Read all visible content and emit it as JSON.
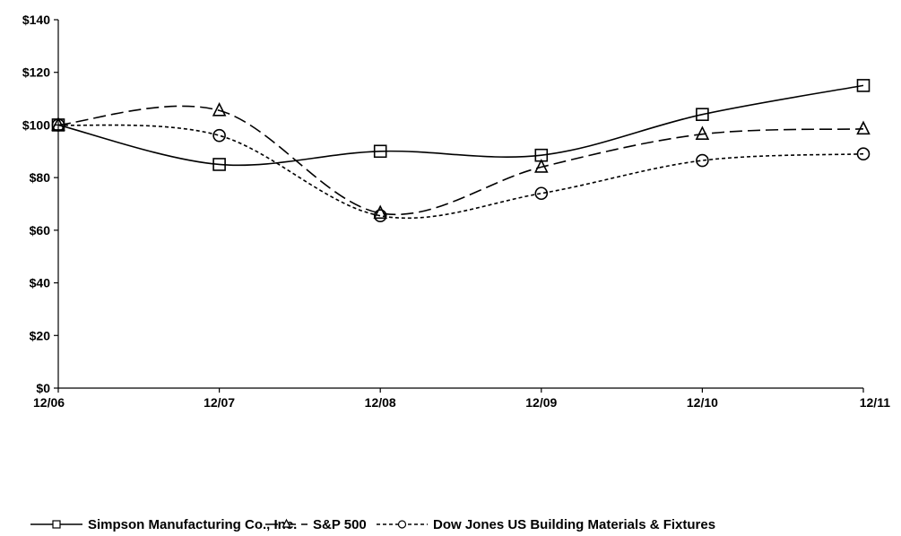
{
  "chart_data": {
    "type": "line",
    "title": "",
    "xlabel": "",
    "ylabel": "",
    "categories": [
      "12/06",
      "12/07",
      "12/08",
      "12/09",
      "12/10",
      "12/11"
    ],
    "y_ticks": [
      "$0",
      "$20",
      "$40",
      "$60",
      "$80",
      "$100",
      "$120",
      "$140"
    ],
    "ylim": [
      0,
      140
    ],
    "grid": false,
    "legend_position": "bottom",
    "series": [
      {
        "name": "Simpson Manufacturing Co., Inc.",
        "marker": "square",
        "dash": "solid",
        "color": "#000000",
        "values": [
          100,
          85,
          90,
          88.5,
          104,
          115
        ]
      },
      {
        "name": "S&P 500",
        "marker": "triangle",
        "dash": "long-dash",
        "color": "#000000",
        "values": [
          100,
          105.5,
          66.5,
          84,
          96.5,
          98.5
        ]
      },
      {
        "name": "Dow Jones US Building Materials & Fixtures",
        "marker": "circle",
        "dash": "short-dash",
        "color": "#000000",
        "values": [
          100,
          96,
          65.5,
          74,
          86.5,
          89
        ]
      }
    ]
  }
}
